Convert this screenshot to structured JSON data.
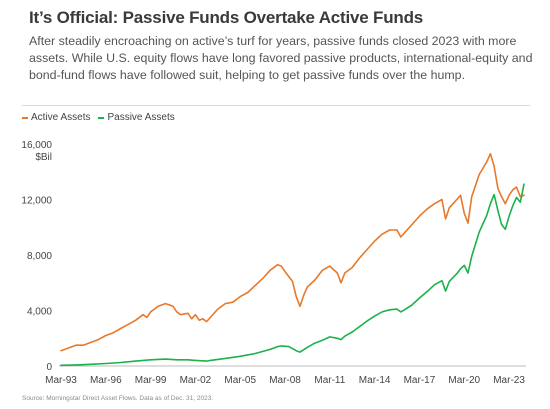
{
  "title": "It’s Official: Passive Funds Overtake Active Funds",
  "subtitle": "After steadily encroaching on active’s turf for years, passive funds closed 2023 with more assets. While U.S. equity flows have long favored passive products, international-equity and bond-fund flows have followed suit, helping to get passive funds over the hump.",
  "source": "Source: Morningstar Direct Asset Flows. Data as of Dec. 31, 2023.",
  "chart_data": {
    "type": "line",
    "ylabel": "$Bil",
    "ylim": [
      0,
      16000
    ],
    "yticks": [
      0,
      4000,
      8000,
      12000,
      16000
    ],
    "ytick_labels": [
      "0",
      "4,000",
      "8,000",
      "12,000",
      "16,000"
    ],
    "xtick_labels": [
      "Mar-93",
      "Mar-96",
      "Mar-99",
      "Mar-02",
      "Mar-05",
      "Mar-08",
      "Mar-11",
      "Mar-14",
      "Mar-17",
      "Mar-20",
      "Mar-23"
    ],
    "xlim": [
      1993.0,
      2024.0
    ],
    "grid": false,
    "legend_position": "top-left",
    "series": [
      {
        "name": "Active Assets",
        "color": "#e8782a",
        "x": [
          1993.0,
          1993.5,
          1994.0,
          1994.5,
          1995.0,
          1995.5,
          1996.0,
          1996.5,
          1997.0,
          1997.5,
          1998.0,
          1998.5,
          1998.75,
          1999.0,
          1999.5,
          2000.0,
          2000.25,
          2000.5,
          2000.75,
          2001.0,
          2001.5,
          2001.75,
          2002.0,
          2002.25,
          2002.5,
          2002.75,
          2003.0,
          2003.5,
          2004.0,
          2004.5,
          2005.0,
          2005.5,
          2006.0,
          2006.5,
          2007.0,
          2007.5,
          2007.75,
          2008.0,
          2008.5,
          2008.75,
          2009.0,
          2009.25,
          2009.5,
          2010.0,
          2010.5,
          2011.0,
          2011.5,
          2011.75,
          2012.0,
          2012.5,
          2013.0,
          2013.5,
          2014.0,
          2014.5,
          2015.0,
          2015.5,
          2015.75,
          2016.0,
          2016.5,
          2017.0,
          2017.5,
          2018.0,
          2018.5,
          2018.75,
          2019.0,
          2019.5,
          2019.75,
          2020.0,
          2020.25,
          2020.5,
          2021.0,
          2021.5,
          2021.75,
          2022.0,
          2022.25,
          2022.5,
          2022.75,
          2023.0,
          2023.25,
          2023.5,
          2023.75,
          2024.0
        ],
        "values": [
          1100,
          1300,
          1500,
          1500,
          1700,
          1900,
          2200,
          2400,
          2700,
          3000,
          3300,
          3700,
          3500,
          3900,
          4300,
          4500,
          4400,
          4300,
          3900,
          3700,
          3800,
          3400,
          3700,
          3300,
          3400,
          3200,
          3500,
          4100,
          4500,
          4600,
          5000,
          5300,
          5800,
          6300,
          6900,
          7300,
          7200,
          6800,
          6100,
          5000,
          4300,
          5100,
          5700,
          6200,
          6900,
          7200,
          6700,
          6000,
          6700,
          7100,
          7800,
          8400,
          9000,
          9500,
          9800,
          9800,
          9300,
          9600,
          10200,
          10800,
          11300,
          11700,
          12000,
          10600,
          11400,
          12000,
          12300,
          11000,
          10300,
          12200,
          13800,
          14700,
          15300,
          14400,
          12800,
          12200,
          11700,
          12300,
          12700,
          12900,
          12200,
          12300
        ]
      },
      {
        "name": "Passive Assets",
        "color": "#1bb24a",
        "x": [
          1993.0,
          1994.0,
          1995.0,
          1996.0,
          1997.0,
          1998.0,
          1999.0,
          2000.0,
          2000.75,
          2001.5,
          2002.0,
          2002.75,
          2003.0,
          2004.0,
          2005.0,
          2006.0,
          2007.0,
          2007.5,
          2007.75,
          2008.25,
          2008.75,
          2009.0,
          2009.5,
          2010.0,
          2010.5,
          2011.0,
          2011.5,
          2011.75,
          2012.0,
          2012.5,
          2013.0,
          2013.5,
          2014.0,
          2014.5,
          2015.0,
          2015.5,
          2015.75,
          2016.0,
          2016.5,
          2017.0,
          2017.5,
          2018.0,
          2018.5,
          2018.75,
          2019.0,
          2019.5,
          2019.75,
          2020.0,
          2020.25,
          2020.5,
          2021.0,
          2021.5,
          2021.75,
          2022.0,
          2022.25,
          2022.5,
          2022.75,
          2023.0,
          2023.25,
          2023.5,
          2023.75,
          2024.0
        ],
        "values": [
          50,
          80,
          120,
          180,
          250,
          350,
          450,
          500,
          450,
          450,
          400,
          350,
          400,
          550,
          700,
          900,
          1200,
          1400,
          1450,
          1400,
          1100,
          1000,
          1350,
          1650,
          1850,
          2100,
          2000,
          1900,
          2150,
          2450,
          2850,
          3250,
          3600,
          3900,
          4050,
          4100,
          3900,
          4050,
          4400,
          4900,
          5350,
          5850,
          6150,
          5400,
          6100,
          6650,
          7000,
          7250,
          6700,
          7900,
          9650,
          10850,
          11700,
          12350,
          11200,
          10200,
          9850,
          10800,
          11550,
          12150,
          11800,
          13100
        ]
      }
    ]
  }
}
